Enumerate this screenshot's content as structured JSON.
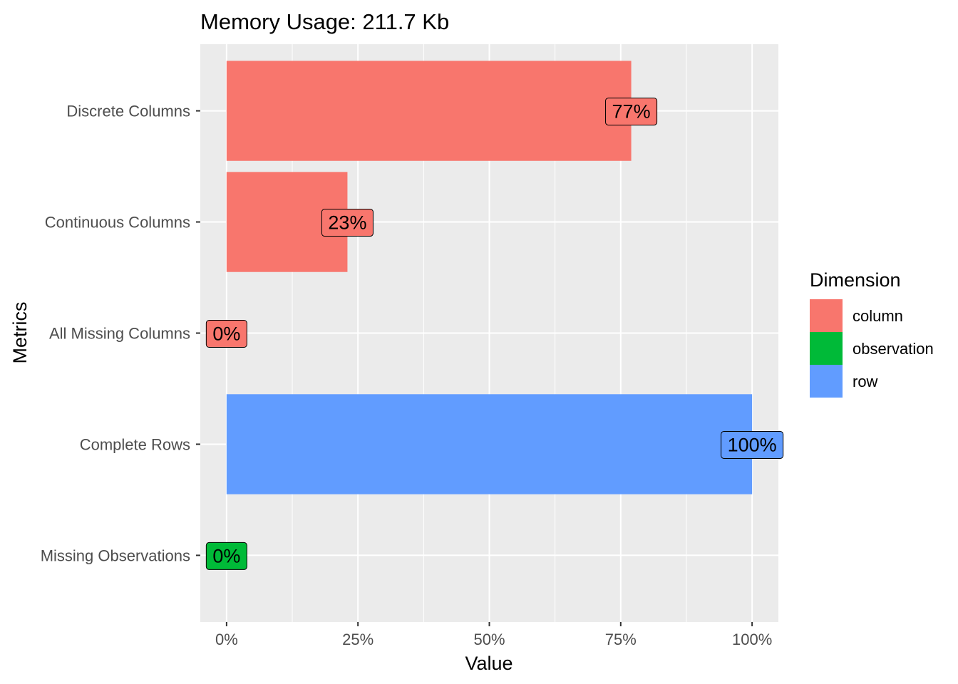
{
  "chart_data": {
    "type": "bar",
    "orientation": "horizontal",
    "title": "Memory Usage: 211.7 Kb",
    "xlabel": "Value",
    "ylabel": "Metrics",
    "xlim": [
      -0.05,
      1.05
    ],
    "x_ticks": [
      0,
      0.25,
      0.5,
      0.75,
      1.0
    ],
    "x_tick_labels": [
      "0%",
      "25%",
      "50%",
      "75%",
      "100%"
    ],
    "grid": true,
    "legend_position": "right",
    "legend": {
      "title": "Dimension",
      "entries": [
        {
          "name": "column",
          "color": "#F8766D"
        },
        {
          "name": "observation",
          "color": "#00BA38"
        },
        {
          "name": "row",
          "color": "#619CFF"
        }
      ]
    },
    "categories": [
      "Discrete Columns",
      "Continuous Columns",
      "All Missing Columns",
      "Complete Rows",
      "Missing Observations"
    ],
    "values": [
      0.77,
      0.23,
      0,
      1.0,
      0
    ],
    "labels": [
      "77%",
      "23%",
      "0%",
      "100%",
      "0%"
    ],
    "dimensions": [
      "column",
      "column",
      "column",
      "row",
      "observation"
    ]
  }
}
